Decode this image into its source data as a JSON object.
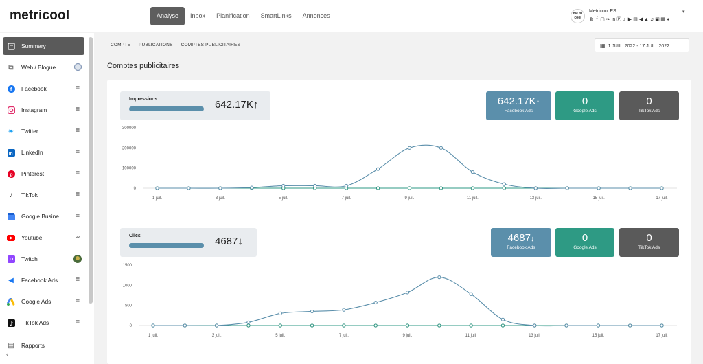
{
  "app": {
    "logo": "metricool"
  },
  "nav": {
    "items": [
      "Analyse",
      "Inbox",
      "Planification",
      "SmartLinks",
      "Annonces"
    ],
    "active": "Analyse"
  },
  "account": {
    "name": "Metricool ES",
    "avatar_text": "me tri cool",
    "caret": "▾",
    "network_icons": [
      "rss-icon",
      "facebook-icon",
      "instagram-icon",
      "twitter-icon",
      "linkedin-icon",
      "pinterest-icon",
      "tiktok-icon",
      "youtube-icon",
      "twitch-icon",
      "facebook-ads-icon",
      "google-ads-icon",
      "tiktok-ads-icon",
      "mastodon-icon",
      "google-business-icon",
      "reddit-icon"
    ]
  },
  "sidebar": {
    "items": [
      {
        "label": "Summary",
        "icon": "summary-icon",
        "color": "#ffffff",
        "active": true
      },
      {
        "label": "Web / Blogue",
        "icon": "rss-icon",
        "color": "#6a6a6a"
      },
      {
        "label": "Facebook",
        "icon": "facebook-icon",
        "color": "#1877f2"
      },
      {
        "label": "Instagram",
        "icon": "instagram-icon",
        "color": "#e1306c"
      },
      {
        "label": "Twitter",
        "icon": "twitter-icon",
        "color": "#1da1f2"
      },
      {
        "label": "LinkedIn",
        "icon": "linkedin-icon",
        "color": "#0a66c2"
      },
      {
        "label": "Pinterest",
        "icon": "pinterest-icon",
        "color": "#e60023"
      },
      {
        "label": "TikTok",
        "icon": "tiktok-icon",
        "color": "#111111"
      },
      {
        "label": "Google Busine...",
        "icon": "google-business-icon",
        "color": "#4285f4"
      },
      {
        "label": "Youtube",
        "icon": "youtube-icon",
        "color": "#ff0000"
      },
      {
        "label": "Twitch",
        "icon": "twitch-icon",
        "color": "#9146ff"
      },
      {
        "label": "Facebook Ads",
        "icon": "facebook-ads-icon",
        "color": "#1877f2"
      },
      {
        "label": "Google Ads",
        "icon": "google-ads-icon",
        "color": "#34a853"
      },
      {
        "label": "TikTok Ads",
        "icon": "tiktok-ads-icon",
        "color": "#111111"
      },
      {
        "label": "Rapports",
        "icon": "reports-icon",
        "color": "#555555"
      }
    ]
  },
  "breadcrumb": {
    "tabs": [
      "COMPTE",
      "PUBLICATIONS",
      "COMPTES PUBLICITAIRES"
    ]
  },
  "date_range": {
    "label": "1 JUIL. 2022 - 17 JUIL. 2022"
  },
  "page_title": "Comptes publicitaires",
  "colors": {
    "facebook": "#5b8fab",
    "google": "#2e9a84",
    "tiktok": "#5a5a5a",
    "line": "#5b8fab"
  },
  "impressions": {
    "label": "Impressions",
    "value": "642.17K",
    "trend": "↑",
    "kpis": [
      {
        "value": "642.17K",
        "trend": "↑",
        "label": "Facebook Ads"
      },
      {
        "value": "0",
        "label": "Google Ads"
      },
      {
        "value": "0",
        "label": "TikTok Ads"
      }
    ]
  },
  "clicks": {
    "label": "Clics",
    "value": "4687",
    "trend": "↓",
    "kpis": [
      {
        "value": "4687",
        "trend": "↓",
        "label": "Facebook Ads"
      },
      {
        "value": "0",
        "label": "Google Ads"
      },
      {
        "value": "0",
        "label": "TikTok Ads"
      }
    ]
  },
  "chart_data": [
    {
      "type": "line",
      "title": "Impressions",
      "x": [
        "1 juil.",
        "2 juil.",
        "3 juil.",
        "4 juil.",
        "5 juil.",
        "6 juil.",
        "7 juil.",
        "8 juil.",
        "9 juil.",
        "10 juil.",
        "11 juil.",
        "12 juil.",
        "13 juil.",
        "14 juil.",
        "15 juil.",
        "16 juil.",
        "17 juil."
      ],
      "x_tick_labels": [
        "1 juil.",
        "3 juil.",
        "5 juil.",
        "7 juil.",
        "9 juil.",
        "11 juil.",
        "13 juil.",
        "15 juil.",
        "17 juil."
      ],
      "y_ticks": [
        "0",
        "100000",
        "200000",
        "300000"
      ],
      "ylim": [
        0,
        300000
      ],
      "series": [
        {
          "name": "Facebook Ads",
          "values": [
            0,
            0,
            0,
            3000,
            12000,
            12000,
            12000,
            95000,
            200000,
            200000,
            80000,
            20000,
            0,
            0,
            0,
            0,
            0
          ]
        },
        {
          "name": "Google Ads",
          "values": [
            0,
            0,
            0,
            0,
            0,
            0,
            0,
            0,
            0,
            0,
            0,
            0,
            0,
            0,
            0,
            0,
            0
          ]
        },
        {
          "name": "TikTok Ads",
          "values": [
            0,
            0,
            0,
            0,
            0,
            0,
            0,
            0,
            0,
            0,
            0,
            0,
            0,
            0,
            0,
            0,
            0
          ]
        }
      ]
    },
    {
      "type": "line",
      "title": "Clics",
      "x": [
        "1 juil.",
        "2 juil.",
        "3 juil.",
        "4 juil.",
        "5 juil.",
        "6 juil.",
        "7 juil.",
        "8 juil.",
        "9 juil.",
        "10 juil.",
        "11 juil.",
        "12 juil.",
        "13 juil.",
        "14 juil.",
        "15 juil.",
        "16 juil.",
        "17 juil."
      ],
      "x_tick_labels": [
        "1 juil.",
        "3 juil.",
        "5 juil.",
        "7 juil.",
        "9 juil.",
        "11 juil.",
        "13 juil.",
        "15 juil.",
        "17 juil."
      ],
      "y_ticks": [
        "0",
        "500",
        "1000",
        "1500"
      ],
      "ylim": [
        0,
        1500
      ],
      "series": [
        {
          "name": "Facebook Ads",
          "values": [
            0,
            0,
            0,
            80,
            300,
            350,
            390,
            570,
            820,
            1200,
            780,
            150,
            0,
            0,
            0,
            0,
            0
          ]
        },
        {
          "name": "Google Ads",
          "values": [
            0,
            0,
            0,
            0,
            0,
            0,
            0,
            0,
            0,
            0,
            0,
            0,
            0,
            0,
            0,
            0,
            0
          ]
        },
        {
          "name": "TikTok Ads",
          "values": [
            0,
            0,
            0,
            0,
            0,
            0,
            0,
            0,
            0,
            0,
            0,
            0,
            0,
            0,
            0,
            0,
            0
          ]
        }
      ]
    }
  ]
}
